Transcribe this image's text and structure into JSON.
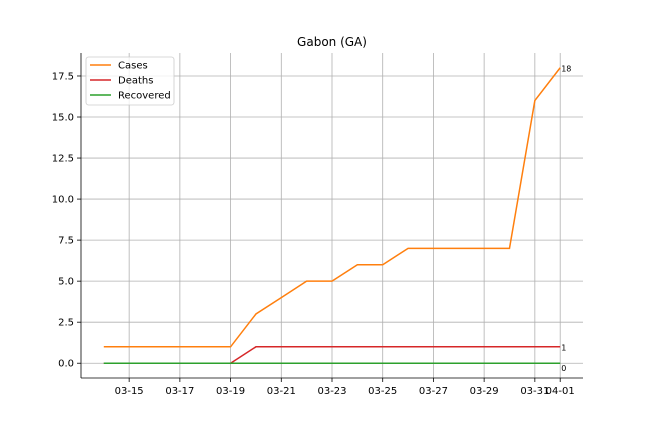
{
  "chart_data": {
    "type": "line",
    "title": "Gabon (GA)",
    "xlabel": "",
    "ylabel": "",
    "x": [
      "03-14",
      "03-15",
      "03-16",
      "03-17",
      "03-18",
      "03-19",
      "03-20",
      "03-21",
      "03-22",
      "03-23",
      "03-24",
      "03-25",
      "03-26",
      "03-27",
      "03-28",
      "03-29",
      "03-30",
      "03-31",
      "04-01"
    ],
    "x_ticks": [
      "03-15",
      "03-17",
      "03-19",
      "03-21",
      "03-23",
      "03-25",
      "03-27",
      "03-29",
      "03-31",
      "04-01"
    ],
    "y_ticks": [
      "0.0",
      "2.5",
      "5.0",
      "7.5",
      "10.0",
      "12.5",
      "15.0",
      "17.5"
    ],
    "ylim": [
      -0.9,
      18.9
    ],
    "grid": true,
    "legend_position": "top-left",
    "series": [
      {
        "name": "Cases",
        "color": "#ff7f0e",
        "values": [
          1,
          1,
          1,
          1,
          1,
          1,
          3,
          4,
          5,
          5,
          6,
          6,
          7,
          7,
          7,
          7,
          7,
          16,
          18
        ],
        "end_label": "18"
      },
      {
        "name": "Deaths",
        "color": "#d62728",
        "values": [
          0,
          0,
          0,
          0,
          0,
          0,
          1,
          1,
          1,
          1,
          1,
          1,
          1,
          1,
          1,
          1,
          1,
          1,
          1
        ],
        "end_label": "1"
      },
      {
        "name": "Recovered",
        "color": "#2ca02c",
        "values": [
          0,
          0,
          0,
          0,
          0,
          0,
          0,
          0,
          0,
          0,
          0,
          0,
          0,
          0,
          0,
          0,
          0,
          0,
          0
        ],
        "end_label": "0"
      }
    ]
  }
}
